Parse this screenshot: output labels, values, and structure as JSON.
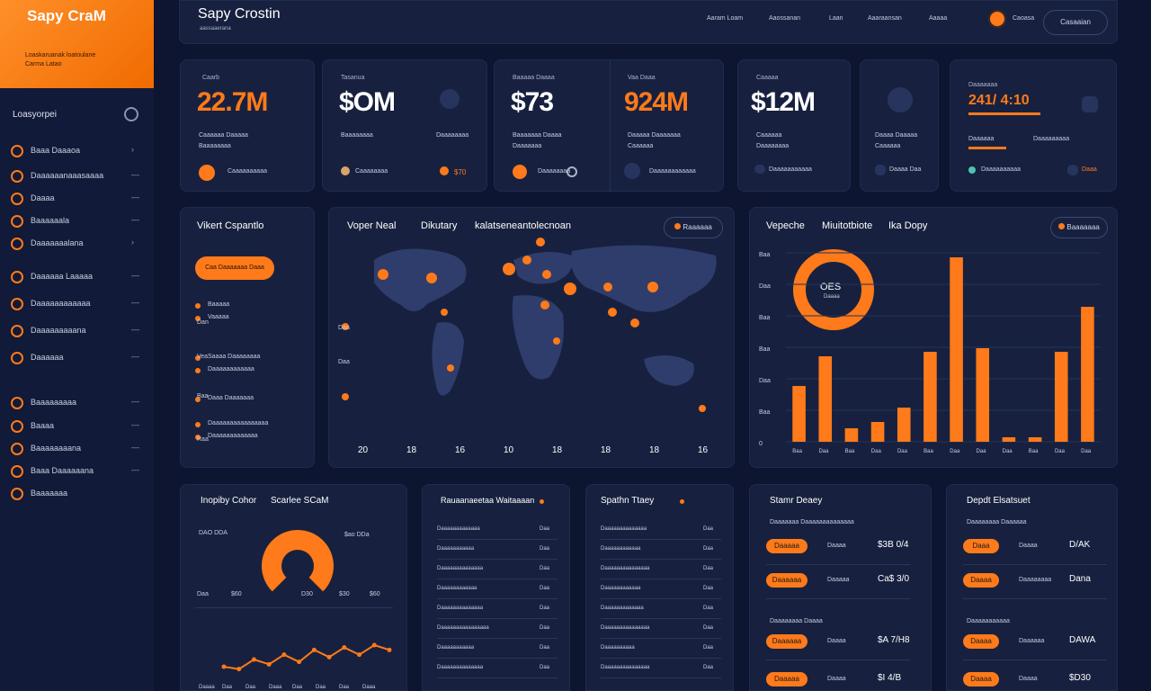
{
  "brand": {
    "logo": "Sapy CraM",
    "sub1": "Loaskaruanak loatoulane",
    "sub2": "Carma Latao"
  },
  "header": {
    "title": "Sapy Crostin",
    "subtitle": "aassaaerana",
    "nav": [
      "Aaram Loam",
      "Aaossanan",
      "Laan",
      "Aaaraansan",
      "Aaaaa"
    ],
    "user": "Caoasa",
    "button": "Casaaian"
  },
  "sidebar": {
    "header": "Loasyorpei",
    "items": [
      {
        "label": "Baaa Daaaoa",
        "arrow": "›"
      },
      {
        "label": "Daaaaaanaaasaaaa",
        "arrow": "—"
      },
      {
        "label": "Daaaa",
        "arrow": "—"
      },
      {
        "label": "Baaaaaala",
        "arrow": "—"
      },
      {
        "label": "Daaaaaaalana",
        "arrow": "›"
      },
      {
        "label": "Daaaaaa Laaaaa",
        "arrow": "—"
      },
      {
        "label": "Daaaaaaaaaaaa",
        "arrow": "—"
      },
      {
        "label": "Daaaaaaaaana",
        "arrow": "—"
      },
      {
        "label": "Daaaaaa",
        "arrow": "—"
      },
      {
        "label": "Baaaaaaaaa",
        "arrow": "—"
      },
      {
        "label": "Baaaa",
        "arrow": "—"
      },
      {
        "label": "Baaaaaaaana",
        "arrow": "—"
      },
      {
        "label": "Baaa Daaaaaana",
        "arrow": "—"
      },
      {
        "label": "Baaaaaaa",
        "arrow": ""
      }
    ]
  },
  "kpis": [
    {
      "label": "Caarb",
      "value": "22.7M",
      "line1": "Caaaaaa Daaaaa",
      "line2": "Baaaaaaaa",
      "foot": "Caaaaaaaaaa"
    },
    {
      "label": "Tasanua",
      "value": "$OM",
      "line1": "Baaaaaaaa",
      "line2": "Daaaaaaaa",
      "foot": "Caaaaaaaa",
      "extra": "$70"
    },
    {
      "label": "Baaaaa Daaaa",
      "value": "$73",
      "line1": "Baaaaaaa Daaaa",
      "line2": "Daaaaaaa",
      "foot": "Daaaaaaaa"
    },
    {
      "label": "Vaa Daaa",
      "value": "924M",
      "line1": "Daaaaa Daaaaaaa",
      "line2": "Caaaaaa",
      "foot": "Daaaaaaaaaaaa"
    },
    {
      "label": "Caaaaa",
      "value": "$12M",
      "line1": "Caaaaaa",
      "line2": "Daaaaaaaa",
      "foot": "Daaaaaaaaaaa"
    },
    {
      "label": "",
      "value": "",
      "line1": "Daaaa Daaaaa",
      "line2": "Caaaaaa",
      "foot": "Daaaa Daa"
    },
    {
      "label": "Daaaaaaa",
      "value": "241/ 4:10",
      "line1": "Daaaaaa",
      "line2": "Daaaaaaaaa",
      "foot": "Daaaaaaaaaa",
      "extra": "Daaa"
    }
  ],
  "left_panel": {
    "title": "Vikert Cspantlo",
    "button": "Caa Daaaaaaa Daaa",
    "rows": [
      "Baaaaa",
      "Vaaaaa",
      "Saaaa Daaaaaaaa",
      "Daaaaaaaaaaaa",
      "Daaa Daaaaaaa",
      "Daaaaaaaaaaaaaaaa",
      "Daaaaaaaaaaaaa"
    ],
    "side_labels": [
      "Dan",
      "Vea",
      "Baa",
      "Raa"
    ]
  },
  "map": {
    "title": "Voper Neal",
    "subtitle": "Dikutary",
    "subtitle2": "kalatseneantolecnoan",
    "badge": "Raaaaaa",
    "ticks": [
      "20",
      "18",
      "16",
      "10",
      "18",
      "18",
      "18",
      "16"
    ],
    "side_ticks": [
      "Daa",
      "Daa"
    ]
  },
  "chart_panel": {
    "title": "Vepeche",
    "title2": "Miuitotbiote",
    "title3": "Ika Dopy",
    "badge": "Baaaaaaa",
    "donut_label": "OES",
    "donut_sub": "Daaaa",
    "y_labels": [
      "Baa",
      "Daa",
      "Baa",
      "Baa",
      "Daa",
      "Baa",
      "0"
    ],
    "x_labels": [
      "Baa",
      "Daa",
      "Baa",
      "Daa",
      "Daa",
      "Baa",
      "Daa",
      "Daa",
      "Daa",
      "Baa",
      "Daa",
      "Daa"
    ]
  },
  "chart_data": {
    "type": "bar",
    "values": [
      62,
      95,
      15,
      22,
      38,
      100,
      205,
      104,
      5,
      5,
      100,
      150
    ],
    "ylim": [
      0,
      210
    ]
  },
  "bottom_left": {
    "title": "Inopiby Cohor",
    "title2": "Scarlee SCaM",
    "legend_a": "DAO DDA",
    "legend_b": "$ao DDa",
    "ticks": [
      "Daa",
      "$60",
      "D30",
      "$30",
      "$60"
    ],
    "line_labels": [
      "Daaaa",
      "Daa",
      "Daa",
      "Daaa",
      "Daa",
      "Daa",
      "Daa",
      "Daaa"
    ],
    "line_values": [
      12,
      10,
      18,
      14,
      22,
      16,
      26,
      20,
      28,
      22,
      30,
      26
    ]
  },
  "list1": {
    "title": "Rauaanaeetaa Waitaaaan",
    "rows": [
      {
        "a": "Daaaaaaaaaaaaa",
        "b": "Daa"
      },
      {
        "a": "Daaaaaaaaaaa",
        "b": "Daa"
      },
      {
        "a": "Daaaaaaaaaaaaaa",
        "b": "Daa"
      },
      {
        "a": "Daaaaaaaaaaaa",
        "b": "Daa"
      },
      {
        "a": "Daaaaaaaaaaaaaa",
        "b": "Daa"
      },
      {
        "a": "Daaaaaaaaaaaaaaaa",
        "b": "Daa"
      },
      {
        "a": "Daaaaaaaaaaa",
        "b": "Daa"
      },
      {
        "a": "Daaaaaaaaaaaaaa",
        "b": "Daa"
      }
    ]
  },
  "list2": {
    "title": "Spathn Ttaey",
    "rows": [
      {
        "a": "Daaaaaaaaaaaaaa",
        "b": "Daa"
      },
      {
        "a": "Daaaaaaaaaaaa",
        "b": "Daa"
      },
      {
        "a": "Daaaaaaaaaaaaaaa",
        "b": "Daa"
      },
      {
        "a": "Daaaaaaaaaaaa",
        "b": "Daa"
      },
      {
        "a": "Daaaaaaaaaaaaa",
        "b": "Daa"
      },
      {
        "a": "Daaaaaaaaaaaaaaa",
        "b": "Daa"
      },
      {
        "a": "Daaaaaaaaaa",
        "b": "Daa"
      },
      {
        "a": "Daaaaaaaaaaaaaaa",
        "b": "Daa"
      }
    ]
  },
  "panel_sales": {
    "title": "Stamr Deaey",
    "header": "Daaaaaaa Daaaaaaaaaaaaaa",
    "rows": [
      {
        "pill": "Daaaaa",
        "mid": "Daaaa",
        "val": "$3B 0/4"
      },
      {
        "pill": "Daaaaaa",
        "mid": "Daaaaa",
        "val": "Ca$ 3/0"
      },
      {
        "pill": "Daaaaaa",
        "mid": "Daaaa",
        "val": "$A 7/H8"
      },
      {
        "pill": "Daaaaa",
        "mid": "Daaaa",
        "val": "$I 4/B"
      }
    ],
    "sub": "Daaaaaaaa Daaaa"
  },
  "panel_dept": {
    "title": "Depdt Elsatsuet",
    "header": "Daaaaaaaa Daaaaaa",
    "rows": [
      {
        "pill": "Daaa",
        "mid": "Daaaa",
        "val": "D/AK"
      },
      {
        "pill": "Daaaa",
        "mid": "Daaaaaaaa",
        "val": "Dana"
      },
      {
        "pill": "Daaaa",
        "mid": "Daaaaaa",
        "val": "DAWA"
      },
      {
        "pill": "Daaaa",
        "mid": "Daaaa",
        "val": "$D30"
      }
    ],
    "sub": "Daaaaaaaaaaa"
  },
  "colors": {
    "accent": "#ff7a1a",
    "bg": "#0d1530",
    "card": "#17213f"
  }
}
